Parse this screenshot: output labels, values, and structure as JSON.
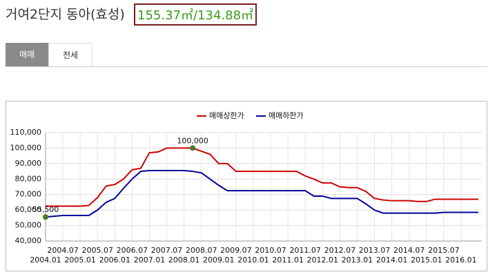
{
  "header": {
    "title": "거여2단지 동아(효성)",
    "area": "155.37㎡/134.88㎡"
  },
  "tabs": [
    "매매",
    "전세"
  ],
  "chart_data": {
    "type": "line",
    "x": [
      "2004.01",
      "2004.04",
      "2004.07",
      "2004.10",
      "2005.01",
      "2005.04",
      "2005.07",
      "2005.10",
      "2006.01",
      "2006.04",
      "2006.07",
      "2006.10",
      "2007.01",
      "2007.04",
      "2007.07",
      "2007.10",
      "2008.01",
      "2008.04",
      "2008.07",
      "2008.10",
      "2009.01",
      "2009.04",
      "2009.07",
      "2009.10",
      "2010.01",
      "2010.04",
      "2010.07",
      "2010.10",
      "2011.01",
      "2011.04",
      "2011.07",
      "2011.10",
      "2012.01",
      "2012.04",
      "2012.07",
      "2012.10",
      "2013.01",
      "2013.04",
      "2013.07",
      "2013.10",
      "2014.01",
      "2014.04",
      "2014.07",
      "2014.10",
      "2015.01",
      "2015.04",
      "2015.07",
      "2015.10",
      "2016.01",
      "2016.04",
      "2016.07"
    ],
    "series": [
      {
        "name": "매매상한가",
        "color": "#cc0000",
        "values": [
          62500,
          62500,
          62500,
          62500,
          62500,
          63000,
          68000,
          75500,
          76500,
          80000,
          86000,
          87000,
          97000,
          97500,
          100000,
          100000,
          100000,
          100000,
          98000,
          96000,
          90000,
          90000,
          85000,
          85000,
          85000,
          85000,
          85000,
          85000,
          85000,
          85000,
          82000,
          80000,
          77500,
          77500,
          75000,
          74500,
          74500,
          72000,
          67500,
          66500,
          66000,
          66000,
          66000,
          65500,
          65500,
          67000,
          67000,
          67000,
          67000,
          67000,
          67000
        ]
      },
      {
        "name": "매매하한가",
        "color": "#000099",
        "values": [
          55500,
          56000,
          56500,
          56500,
          56500,
          56500,
          60000,
          65000,
          67500,
          74000,
          80000,
          85000,
          85500,
          85500,
          85500,
          85500,
          85500,
          85000,
          84000,
          80000,
          76000,
          72500,
          72500,
          72500,
          72500,
          72500,
          72500,
          72500,
          72500,
          72500,
          72500,
          69000,
          69000,
          67500,
          67500,
          67500,
          67500,
          64000,
          60000,
          58000,
          58000,
          58000,
          58000,
          58000,
          58000,
          58000,
          58500,
          58500,
          58500,
          58500,
          58500
        ]
      }
    ],
    "annotations": [
      {
        "series": 0,
        "x": "2008.04",
        "value": 100000,
        "label": "100,000"
      },
      {
        "series": 1,
        "x": "2004.01",
        "value": 55500,
        "label": "55,500"
      }
    ],
    "marker_color": "#4a7a2a",
    "ylim": [
      40000,
      110000
    ],
    "yticks": [
      {
        "value": 40000,
        "label": "40,000"
      },
      {
        "value": 50000,
        "label": "50,000"
      },
      {
        "value": 60000,
        "label": "60,000"
      },
      {
        "value": 70000,
        "label": "70,000"
      },
      {
        "value": 80000,
        "label": "80,000"
      },
      {
        "value": 90000,
        "label": "90,000"
      },
      {
        "value": 100000,
        "label": "100,000"
      },
      {
        "value": 110000,
        "label": "110,000"
      }
    ],
    "xticks": [
      "2004.01",
      "2004.07",
      "2005.01",
      "2005.07",
      "2006.01",
      "2006.07",
      "2007.01",
      "2007.07",
      "2008.01",
      "2008.07",
      "2009.01",
      "2009.07",
      "2010.01",
      "2010.07",
      "2011.01",
      "2011.07",
      "2012.01",
      "2012.07",
      "2013.01",
      "2013.07",
      "2014.01",
      "2014.07",
      "2015.01",
      "2015.07",
      "2016.01"
    ],
    "grid": true
  }
}
